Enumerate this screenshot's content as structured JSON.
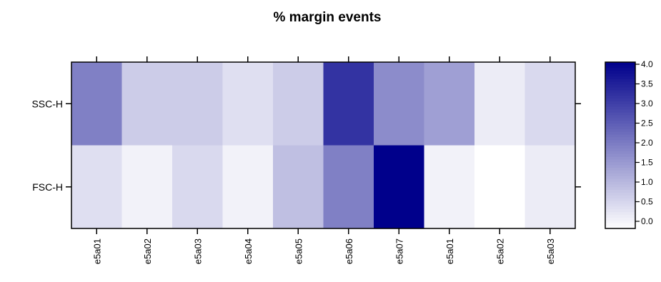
{
  "chart_data": {
    "type": "heatmap",
    "title": "% margin events",
    "x_categories": [
      "e5a01",
      "e5a02",
      "e5a03",
      "e5a04",
      "e5a05",
      "e5a06",
      "e5a07",
      "e5a01",
      "e5a02",
      "e5a03"
    ],
    "y_categories": [
      "SSC-H",
      "FSC-H"
    ],
    "values": [
      [
        2.0,
        0.8,
        0.8,
        0.5,
        0.8,
        3.2,
        1.8,
        1.5,
        0.3,
        0.6
      ],
      [
        0.5,
        0.2,
        0.6,
        0.2,
        1.0,
        2.0,
        4.0,
        0.2,
        0.0,
        0.3
      ]
    ],
    "colorbar": {
      "min": 0.0,
      "max": 4.0,
      "ticks": [
        "0.0",
        "0.5",
        "1.0",
        "1.5",
        "2.0",
        "2.5",
        "3.0",
        "3.5",
        "4.0"
      ],
      "low_color": "#ffffff",
      "high_color": "#00008b"
    }
  }
}
